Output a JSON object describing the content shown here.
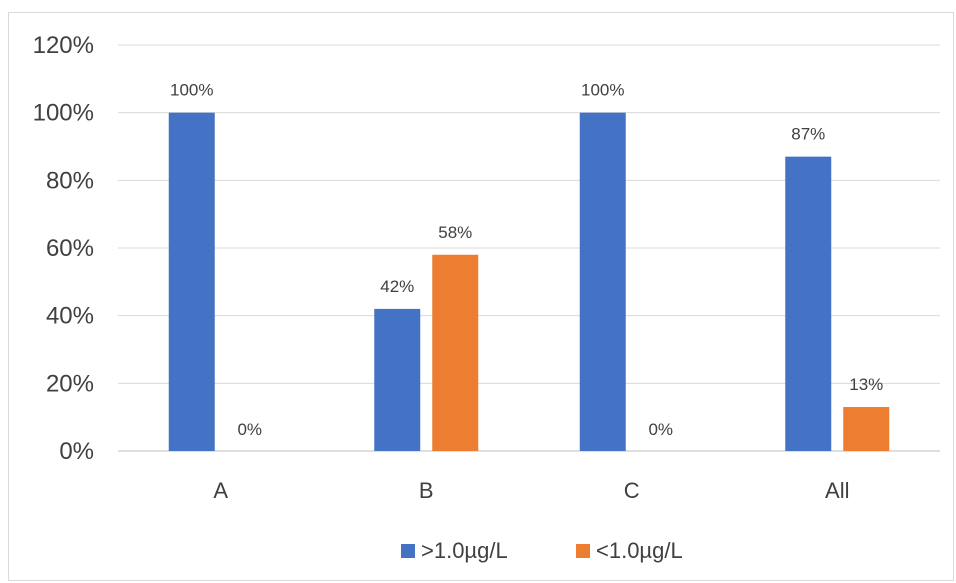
{
  "chart_data": {
    "type": "bar",
    "categories": [
      "A",
      "B",
      "C",
      "All"
    ],
    "series": [
      {
        "name": ">1.0µg/L",
        "values": [
          100,
          42,
          100,
          87
        ],
        "labels": [
          "100%",
          "42%",
          "100%",
          "87%"
        ],
        "color": "#4472C4"
      },
      {
        "name": "<1.0µg/L",
        "values": [
          0,
          58,
          0,
          13
        ],
        "labels": [
          "0%",
          "58%",
          "0%",
          "13%"
        ],
        "color": "#ED7D31"
      }
    ],
    "y_ticks": [
      "0%",
      "20%",
      "40%",
      "60%",
      "80%",
      "100%",
      "120%"
    ],
    "ylim": [
      0,
      120
    ],
    "grid": true,
    "legend_position": "bottom"
  }
}
